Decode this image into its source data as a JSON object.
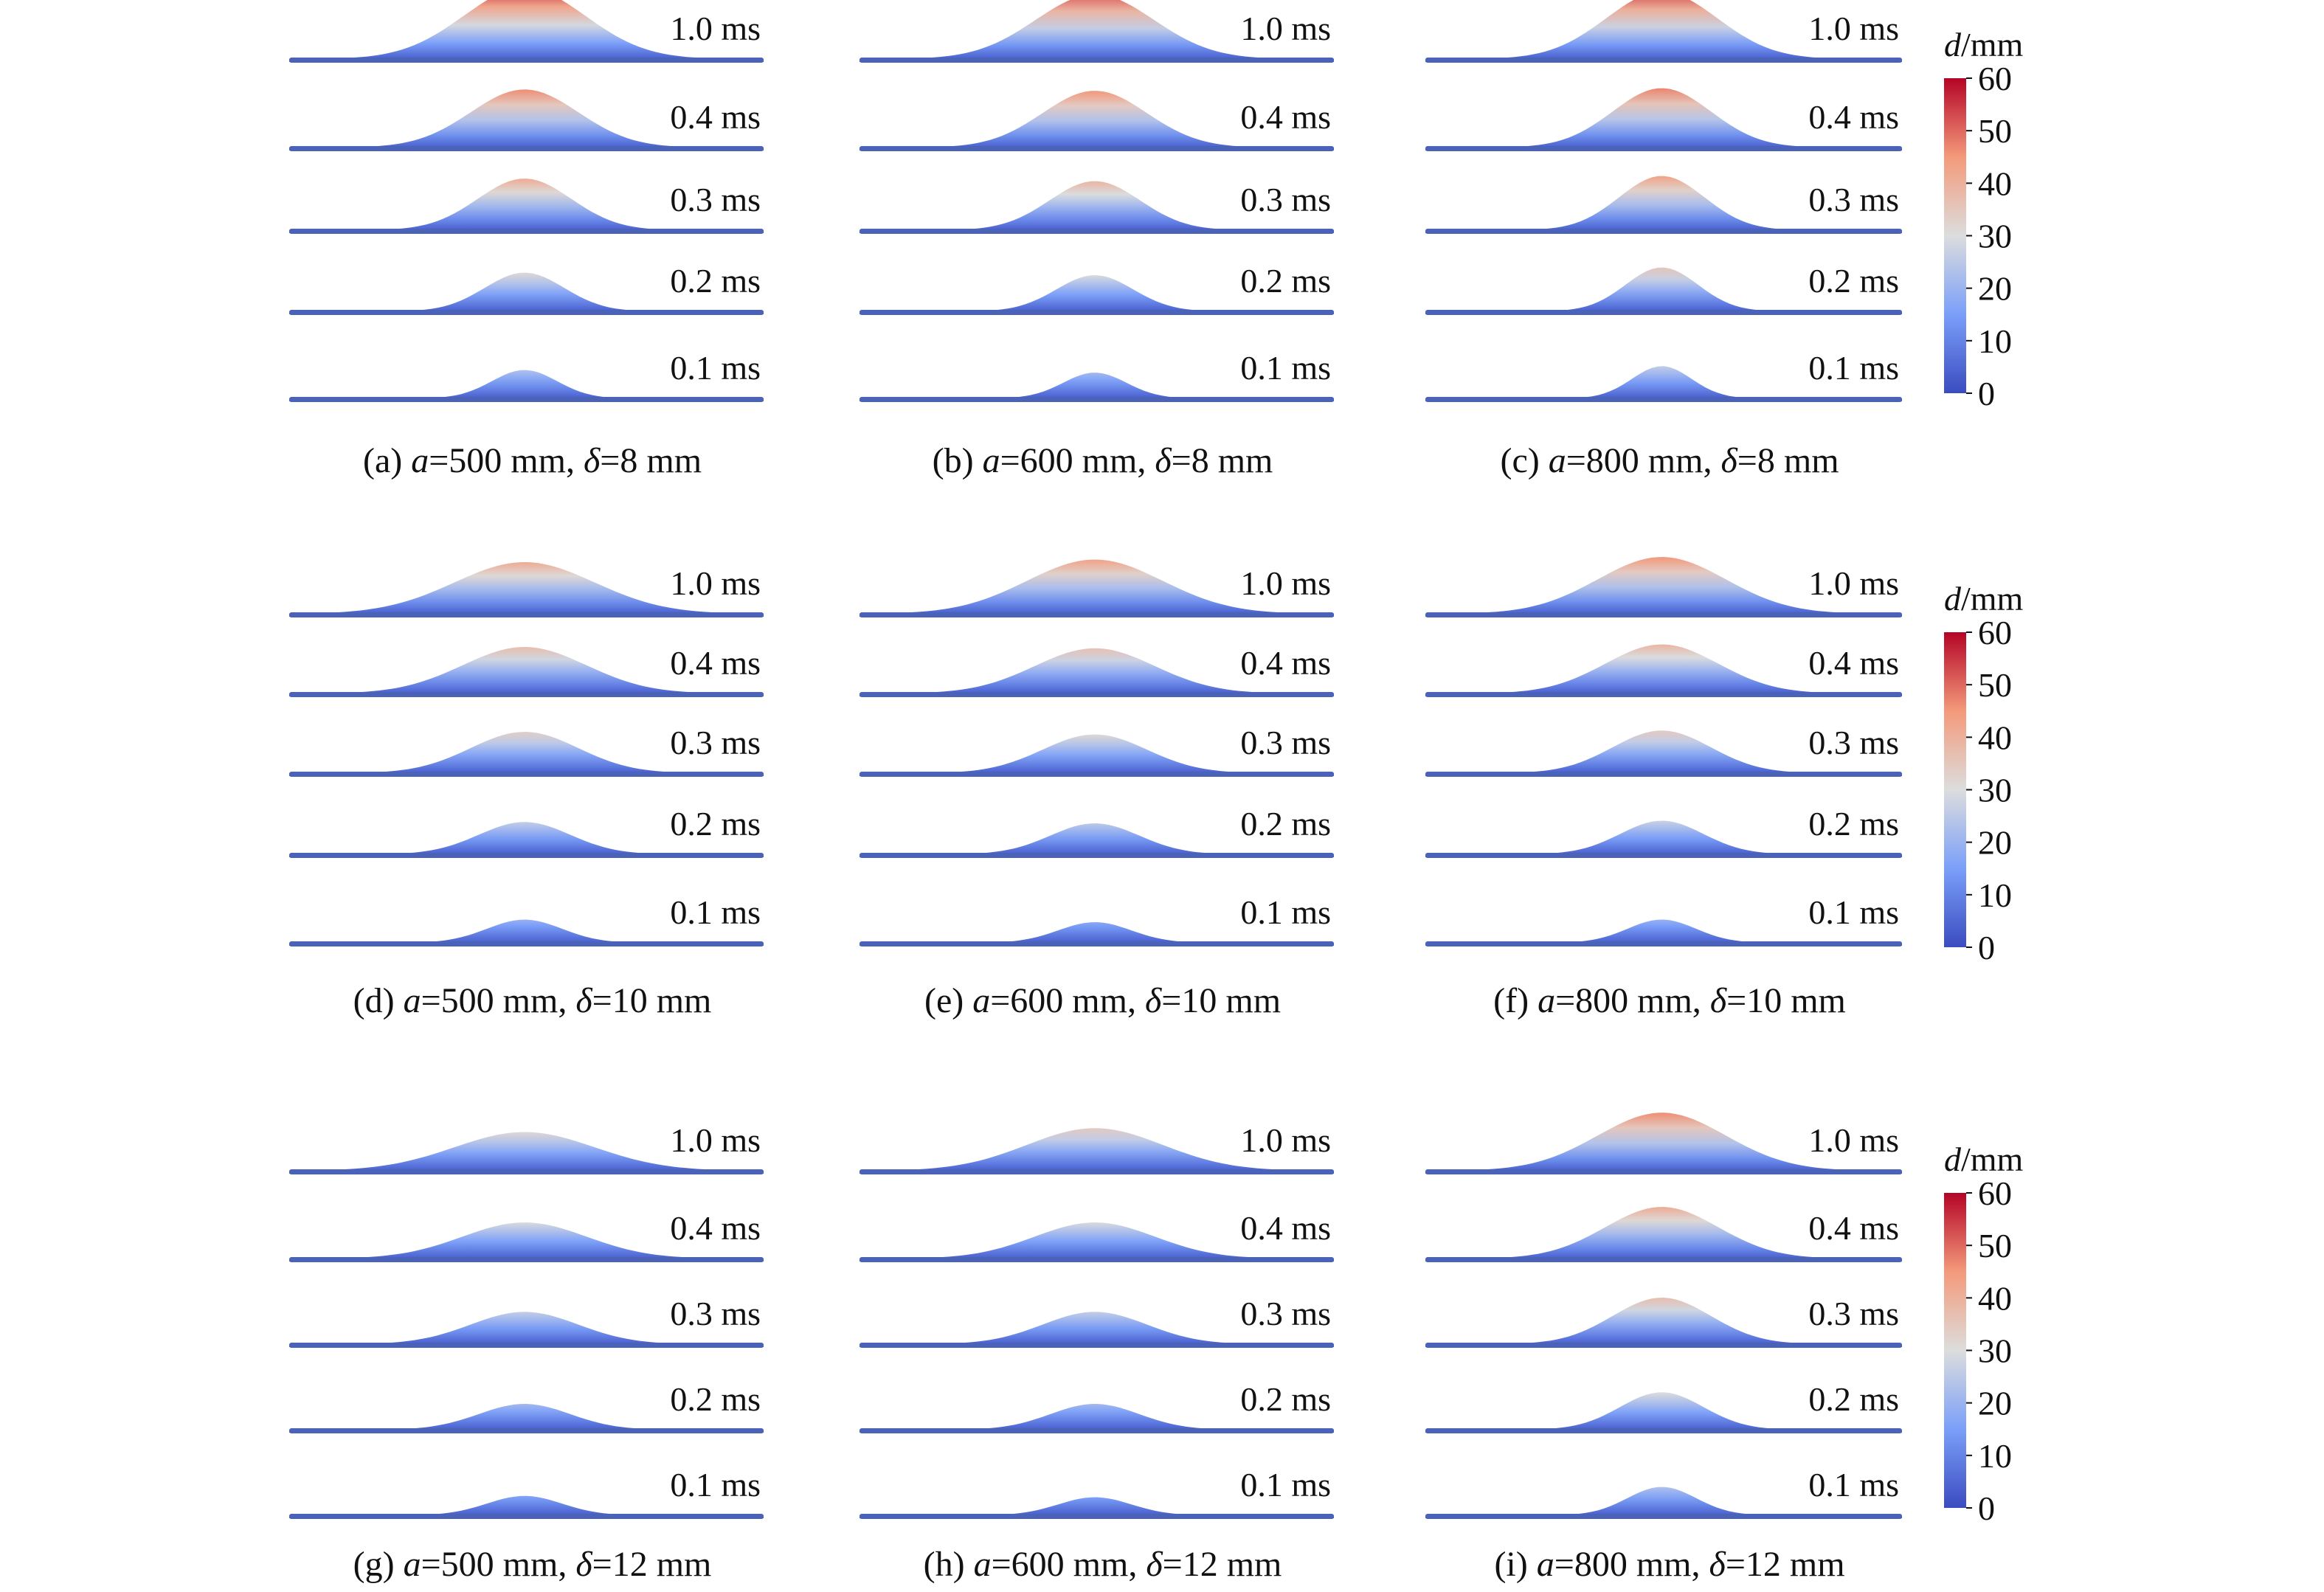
{
  "colormap": {
    "stops": [
      {
        "t": 0.0,
        "color": "#3b4cc0"
      },
      {
        "t": 0.25,
        "color": "#7b9ff9"
      },
      {
        "t": 0.5,
        "color": "#dcdddd"
      },
      {
        "t": 0.75,
        "color": "#f49a7b"
      },
      {
        "t": 1.0,
        "color": "#b40426"
      }
    ],
    "label_var": "d",
    "label_unit": "/mm",
    "ticks": [
      "60",
      "50",
      "40",
      "30",
      "20",
      "10",
      "0"
    ]
  },
  "panels": [
    {
      "id": "a",
      "prefix": "(a) ",
      "a_sym": "a",
      "a_val": "=500 mm, ",
      "d_sym": "δ",
      "d_val": "=8 mm",
      "a_mm": 500,
      "delta_mm": 8,
      "profiles": [
        {
          "time": "1.0 ms",
          "peak_mm": 55
        },
        {
          "time": "0.4 ms",
          "peak_mm": 45
        },
        {
          "time": "0.3 ms",
          "peak_mm": 40
        },
        {
          "time": "0.2 ms",
          "peak_mm": 30
        },
        {
          "time": "0.1 ms",
          "peak_mm": 22
        }
      ]
    },
    {
      "id": "b",
      "prefix": "(b) ",
      "a_sym": "a",
      "a_val": "=600 mm, ",
      "d_sym": "δ",
      "d_val": "=8 mm",
      "a_mm": 600,
      "delta_mm": 8,
      "profiles": [
        {
          "time": "1.0 ms",
          "peak_mm": 50
        },
        {
          "time": "0.4 ms",
          "peak_mm": 44
        },
        {
          "time": "0.3 ms",
          "peak_mm": 38
        },
        {
          "time": "0.2 ms",
          "peak_mm": 28
        },
        {
          "time": "0.1 ms",
          "peak_mm": 20
        }
      ]
    },
    {
      "id": "c",
      "prefix": "(c) ",
      "a_sym": "a",
      "a_val": "=800 mm, ",
      "d_sym": "δ",
      "d_val": "=8 mm",
      "a_mm": 800,
      "delta_mm": 8,
      "profiles": [
        {
          "time": "1.0 ms",
          "peak_mm": 52
        },
        {
          "time": "0.4 ms",
          "peak_mm": 46
        },
        {
          "time": "0.3 ms",
          "peak_mm": 42
        },
        {
          "time": "0.2 ms",
          "peak_mm": 34
        },
        {
          "time": "0.1 ms",
          "peak_mm": 25
        }
      ]
    },
    {
      "id": "d",
      "prefix": "(d) ",
      "a_sym": "a",
      "a_val": "=500 mm, ",
      "d_sym": "δ",
      "d_val": "=10 mm",
      "a_mm": 500,
      "delta_mm": 10,
      "profiles": [
        {
          "time": "1.0 ms",
          "peak_mm": 40
        },
        {
          "time": "0.4 ms",
          "peak_mm": 36
        },
        {
          "time": "0.3 ms",
          "peak_mm": 32
        },
        {
          "time": "0.2 ms",
          "peak_mm": 25
        },
        {
          "time": "0.1 ms",
          "peak_mm": 18
        }
      ]
    },
    {
      "id": "e",
      "prefix": "(e) ",
      "a_sym": "a",
      "a_val": "=600 mm, ",
      "d_sym": "δ",
      "d_val": "=10 mm",
      "a_mm": 600,
      "delta_mm": 10,
      "profiles": [
        {
          "time": "1.0 ms",
          "peak_mm": 42
        },
        {
          "time": "0.4 ms",
          "peak_mm": 35
        },
        {
          "time": "0.3 ms",
          "peak_mm": 30
        },
        {
          "time": "0.2 ms",
          "peak_mm": 24
        },
        {
          "time": "0.1 ms",
          "peak_mm": 16
        }
      ]
    },
    {
      "id": "f",
      "prefix": "(f) ",
      "a_sym": "a",
      "a_val": "=800 mm, ",
      "d_sym": "δ",
      "d_val": "=10 mm",
      "a_mm": 800,
      "delta_mm": 10,
      "profiles": [
        {
          "time": "1.0 ms",
          "peak_mm": 44
        },
        {
          "time": "0.4 ms",
          "peak_mm": 38
        },
        {
          "time": "0.3 ms",
          "peak_mm": 33
        },
        {
          "time": "0.2 ms",
          "peak_mm": 26
        },
        {
          "time": "0.1 ms",
          "peak_mm": 18
        }
      ]
    },
    {
      "id": "g",
      "prefix": "(g) ",
      "a_sym": "a",
      "a_val": "=500 mm, ",
      "d_sym": "δ",
      "d_val": "=12 mm",
      "a_mm": 500,
      "delta_mm": 12,
      "profiles": [
        {
          "time": "1.0 ms",
          "peak_mm": 30
        },
        {
          "time": "0.4 ms",
          "peak_mm": 28
        },
        {
          "time": "0.3 ms",
          "peak_mm": 25
        },
        {
          "time": "0.2 ms",
          "peak_mm": 20
        },
        {
          "time": "0.1 ms",
          "peak_mm": 15
        }
      ]
    },
    {
      "id": "h",
      "prefix": "(h) ",
      "a_sym": "a",
      "a_val": "=600 mm, ",
      "d_sym": "δ",
      "d_val": "=12 mm",
      "a_mm": 600,
      "delta_mm": 12,
      "profiles": [
        {
          "time": "1.0 ms",
          "peak_mm": 33
        },
        {
          "time": "0.4 ms",
          "peak_mm": 28
        },
        {
          "time": "0.3 ms",
          "peak_mm": 25
        },
        {
          "time": "0.2 ms",
          "peak_mm": 20
        },
        {
          "time": "0.1 ms",
          "peak_mm": 14
        }
      ]
    },
    {
      "id": "i",
      "prefix": "(i) ",
      "a_sym": "a",
      "a_val": "=800 mm, ",
      "d_sym": "δ",
      "d_val": "=12 mm",
      "a_mm": 800,
      "delta_mm": 12,
      "profiles": [
        {
          "time": "1.0 ms",
          "peak_mm": 45
        },
        {
          "time": "0.4 ms",
          "peak_mm": 40
        },
        {
          "time": "0.3 ms",
          "peak_mm": 36
        },
        {
          "time": "0.2 ms",
          "peak_mm": 29
        },
        {
          "time": "0.1 ms",
          "peak_mm": 22
        }
      ]
    }
  ]
}
